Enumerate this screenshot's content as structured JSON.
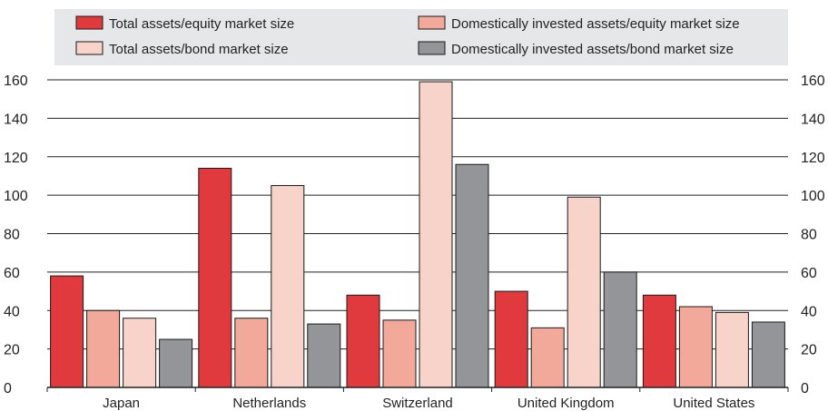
{
  "chart_data": {
    "type": "bar",
    "title": "",
    "xlabel": "",
    "ylabel": "",
    "ylim": [
      0,
      160
    ],
    "yticks": [
      0,
      20,
      40,
      60,
      80,
      100,
      120,
      140,
      160
    ],
    "grid": true,
    "dual_y_axis": true,
    "legend_position": "top",
    "categories": [
      "Japan",
      "Netherlands",
      "Switzerland",
      "United Kingdom",
      "United States"
    ],
    "series": [
      {
        "name": "Total assets/equity market size",
        "color": "#e03a3e",
        "values": [
          58,
          114,
          48,
          50,
          48
        ]
      },
      {
        "name": "Domestically invested assets/equity market size",
        "color": "#f2a99a",
        "values": [
          40,
          36,
          35,
          31,
          42
        ]
      },
      {
        "name": "Total assets/bond market size",
        "color": "#f8d3ca",
        "values": [
          36,
          105,
          159,
          99,
          39
        ]
      },
      {
        "name": "Domestically invested assets/bond market size",
        "color": "#939598",
        "values": [
          25,
          33,
          116,
          60,
          34
        ]
      }
    ]
  },
  "colors": {
    "legend_background": "#e6e7e8",
    "gridline": "#222222"
  }
}
